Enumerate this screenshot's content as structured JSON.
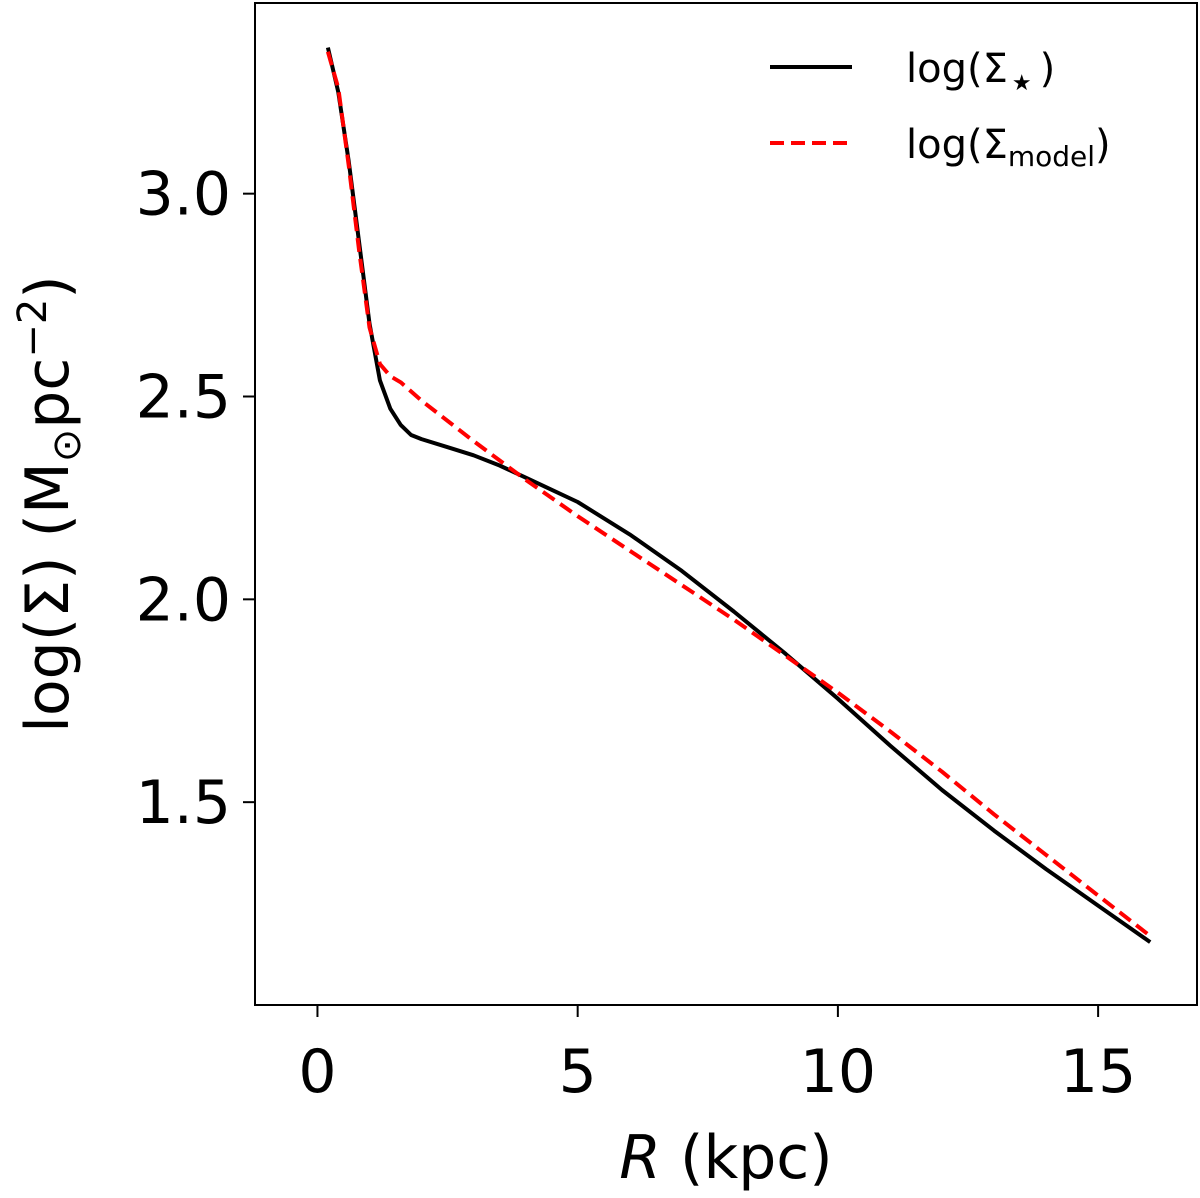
{
  "chart_data": {
    "type": "line",
    "xlabel_italic": "R",
    "xlabel_rest": " (kpc)",
    "ylabel_main": "log(Σ) (M",
    "ylabel_sun": "⊙",
    "ylabel_pc": "pc",
    "ylabel_sup": "−2",
    "ylabel_close": ")",
    "xlim": [
      -1.2,
      16.9
    ],
    "ylim": [
      1.0,
      3.47
    ],
    "xticks": [
      0,
      5,
      10,
      15
    ],
    "xtick_labels": [
      "0",
      "5",
      "10",
      "15"
    ],
    "yticks": [
      1.5,
      2.0,
      2.5,
      3.0
    ],
    "ytick_labels": [
      "1.5",
      "2.0",
      "2.5",
      "3.0"
    ],
    "grid": false,
    "legend_position": "upper right",
    "series": [
      {
        "name": "log(Σ★)",
        "legend_main": "log(Σ",
        "legend_sub": "★",
        "legend_close": ")",
        "color": "#000000",
        "style": "solid",
        "x": [
          0.2,
          0.4,
          0.6,
          0.8,
          1.0,
          1.2,
          1.4,
          1.6,
          1.8,
          2.0,
          2.5,
          3.0,
          3.5,
          4.0,
          4.5,
          5.0,
          6.0,
          7.0,
          8.0,
          9.0,
          10.0,
          11.0,
          12.0,
          13.0,
          14.0,
          15.0,
          16.0
        ],
        "y": [
          3.36,
          3.25,
          3.08,
          2.88,
          2.68,
          2.54,
          2.47,
          2.43,
          2.405,
          2.395,
          2.375,
          2.355,
          2.33,
          2.3,
          2.27,
          2.24,
          2.16,
          2.07,
          1.97,
          1.865,
          1.755,
          1.64,
          1.53,
          1.43,
          1.335,
          1.245,
          1.155
        ]
      },
      {
        "name": "log(Σmodel)",
        "legend_main": "log(Σ",
        "legend_sub": "model",
        "legend_close": ")",
        "color": "#ff0000",
        "style": "dashed",
        "x": [
          0.2,
          0.4,
          0.6,
          0.8,
          1.0,
          1.2,
          1.4,
          1.6,
          2.0,
          3.0,
          4.0,
          5.0,
          6.0,
          7.0,
          8.0,
          9.0,
          10.0,
          11.0,
          12.0,
          13.0,
          14.0,
          15.0,
          16.0
        ],
        "y": [
          3.35,
          3.26,
          3.07,
          2.86,
          2.67,
          2.58,
          2.55,
          2.535,
          2.49,
          2.39,
          2.295,
          2.205,
          2.12,
          2.035,
          1.95,
          1.86,
          1.77,
          1.675,
          1.575,
          1.47,
          1.37,
          1.27,
          1.17
        ]
      }
    ]
  }
}
